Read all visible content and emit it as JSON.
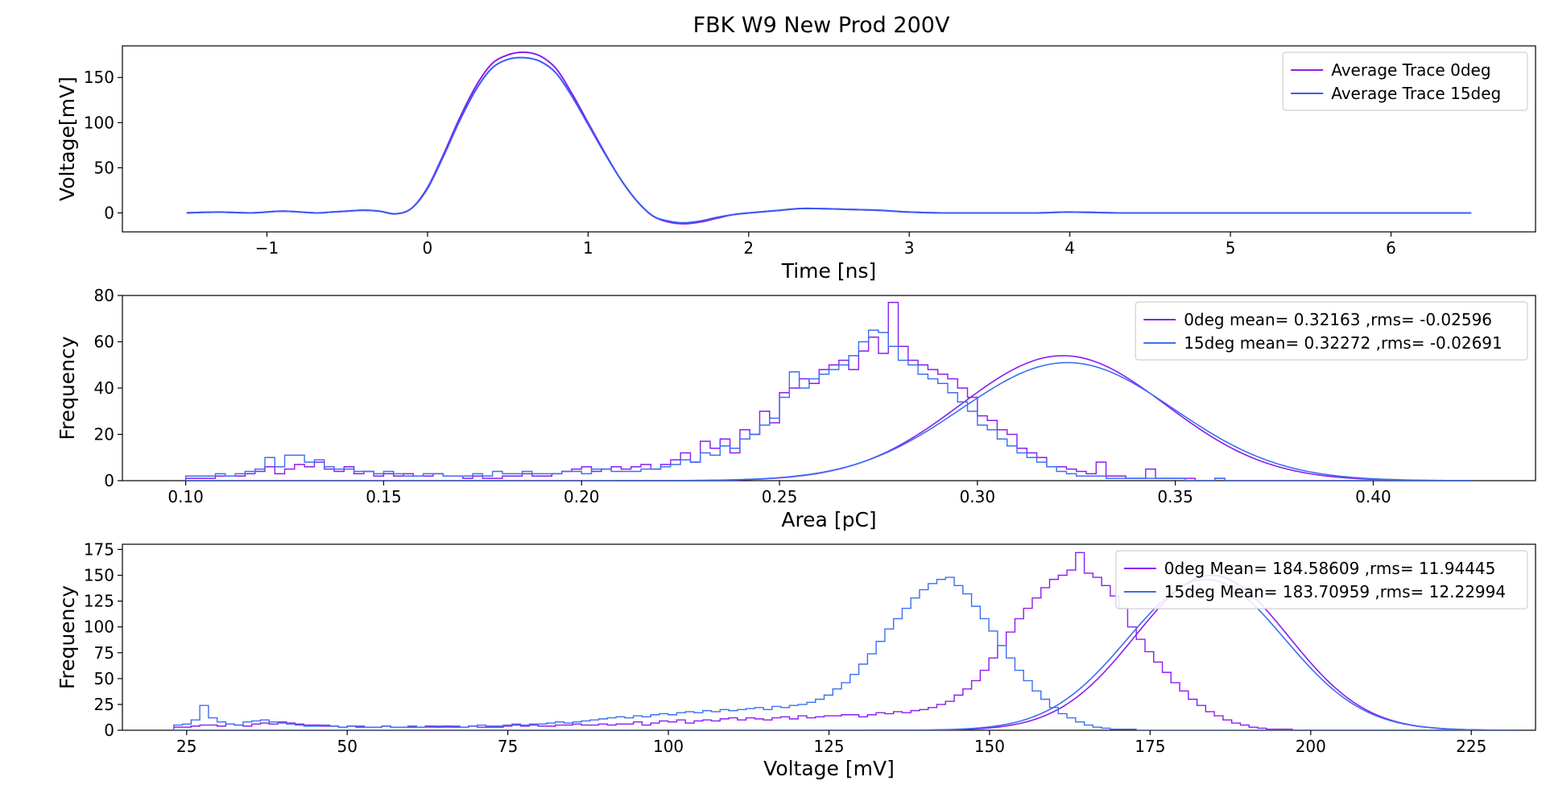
{
  "figure_title": "FBK W9 New Prod 200V",
  "colors": {
    "purple": "#8b1cf0",
    "blue": "#3a6ff2",
    "trace_blue": "#3b5bf5"
  },
  "chart_data": [
    {
      "type": "line",
      "title": "",
      "xlabel": "Time [ns]",
      "ylabel": "Voltage[mV]",
      "xlim": [
        -1.9,
        6.9
      ],
      "ylim": [
        -21,
        185
      ],
      "xticks": [
        -1,
        0,
        1,
        2,
        3,
        4,
        5,
        6
      ],
      "xtick_labels": [
        "−1",
        "0",
        "1",
        "2",
        "3",
        "4",
        "5",
        "6"
      ],
      "yticks": [
        0,
        50,
        100,
        150
      ],
      "grid": false,
      "legend_position": "top-right",
      "series": [
        {
          "name": "Average Trace 0deg",
          "color": "#8b1cf0",
          "x": [
            -1.5,
            -1.3,
            -1.1,
            -0.9,
            -0.7,
            -0.6,
            -0.5,
            -0.4,
            -0.3,
            -0.2,
            -0.1,
            0.0,
            0.1,
            0.2,
            0.3,
            0.4,
            0.5,
            0.6,
            0.7,
            0.8,
            0.9,
            1.0,
            1.1,
            1.2,
            1.3,
            1.4,
            1.5,
            1.6,
            1.7,
            1.8,
            1.9,
            2.0,
            2.2,
            2.35,
            2.6,
            2.8,
            3.0,
            3.2,
            3.5,
            3.8,
            4.0,
            4.3,
            4.6,
            5.0,
            5.5,
            6.0,
            6.5
          ],
          "y": [
            0,
            1,
            0,
            2,
            0,
            1,
            2,
            3,
            2,
            -1,
            5,
            28,
            65,
            105,
            140,
            165,
            175,
            178,
            174,
            160,
            132,
            100,
            68,
            38,
            14,
            -3,
            -10,
            -12,
            -10,
            -6,
            -2,
            0,
            3,
            5,
            4,
            3,
            1,
            0,
            0,
            0,
            1,
            0,
            0,
            0,
            0,
            0,
            0
          ]
        },
        {
          "name": "Average Trace 15deg",
          "color": "#3b5bf5",
          "x": [
            -1.5,
            -1.3,
            -1.1,
            -0.9,
            -0.7,
            -0.6,
            -0.5,
            -0.4,
            -0.3,
            -0.2,
            -0.1,
            0.0,
            0.1,
            0.2,
            0.3,
            0.4,
            0.5,
            0.6,
            0.7,
            0.8,
            0.9,
            1.0,
            1.1,
            1.2,
            1.3,
            1.4,
            1.5,
            1.6,
            1.7,
            1.8,
            1.9,
            2.0,
            2.2,
            2.35,
            2.6,
            2.8,
            3.0,
            3.2,
            3.5,
            3.8,
            4.0,
            4.3,
            4.6,
            5.0,
            5.5,
            6.0,
            6.5
          ],
          "y": [
            0,
            1,
            0,
            2,
            0,
            1,
            2,
            3,
            2,
            -1,
            5,
            27,
            63,
            102,
            136,
            160,
            170,
            172,
            168,
            155,
            129,
            98,
            67,
            38,
            14,
            -3,
            -9,
            -11,
            -9,
            -5,
            -2,
            0,
            3,
            5,
            4,
            3,
            1,
            0,
            0,
            0,
            1,
            0,
            0,
            0,
            0,
            0,
            0
          ]
        }
      ]
    },
    {
      "type": "histogram",
      "title": "",
      "xlabel": "Area [pC]",
      "ylabel": "Frequency",
      "xlim": [
        0.084,
        0.441
      ],
      "ylim": [
        0,
        80
      ],
      "xticks": [
        0.1,
        0.15,
        0.2,
        0.25,
        0.3,
        0.35,
        0.4
      ],
      "xtick_labels": [
        "0.10",
        "0.15",
        "0.20",
        "0.25",
        "0.30",
        "0.35",
        "0.40"
      ],
      "yticks": [
        0,
        20,
        40,
        60,
        80
      ],
      "grid": false,
      "legend_position": "top-right",
      "bin_start": 0.1,
      "bin_width": 0.0025,
      "series": [
        {
          "name": "0deg mean= 0.32163 ,rms= -0.02596",
          "color": "#8b1cf0",
          "counts": [
            1,
            1,
            1,
            2,
            2,
            2,
            3,
            4,
            6,
            3,
            5,
            7,
            6,
            8,
            5,
            4,
            6,
            3,
            4,
            2,
            3,
            2,
            3,
            2,
            2,
            3,
            2,
            2,
            1,
            2,
            1,
            1,
            2,
            2,
            3,
            2,
            2,
            3,
            4,
            5,
            6,
            4,
            5,
            6,
            5,
            6,
            7,
            5,
            7,
            9,
            12,
            8,
            17,
            14,
            18,
            12,
            22,
            20,
            30,
            25,
            38,
            40,
            44,
            42,
            48,
            50,
            52,
            48,
            56,
            62,
            55,
            77,
            58,
            52,
            50,
            48,
            46,
            44,
            40,
            36,
            28,
            26,
            22,
            20,
            14,
            12,
            10,
            6,
            6,
            5,
            4,
            3,
            8,
            2,
            2,
            1,
            1,
            5,
            1,
            1,
            1,
            1,
            0,
            0,
            1,
            0,
            0,
            0,
            0,
            0,
            0,
            0,
            0,
            0,
            0,
            0,
            0,
            0,
            0,
            0,
            0,
            0,
            0,
            0,
            0,
            0,
            0,
            0,
            0,
            0
          ],
          "fit_mean": 0.32163,
          "fit_sigma": 0.02596,
          "fit_peak": 54
        },
        {
          "name": "15deg mean= 0.32272 ,rms= -0.02691",
          "color": "#3a6ff2",
          "counts": [
            2,
            2,
            2,
            3,
            2,
            3,
            4,
            5,
            10,
            6,
            11,
            11,
            8,
            9,
            6,
            5,
            5,
            4,
            4,
            3,
            4,
            3,
            2,
            2,
            3,
            3,
            2,
            2,
            2,
            3,
            2,
            4,
            3,
            3,
            4,
            3,
            3,
            3,
            4,
            4,
            3,
            5,
            5,
            4,
            4,
            4,
            5,
            5,
            6,
            7,
            9,
            8,
            12,
            11,
            15,
            14,
            18,
            20,
            24,
            27,
            36,
            47,
            40,
            44,
            46,
            48,
            50,
            54,
            60,
            65,
            64,
            58,
            52,
            50,
            46,
            44,
            42,
            38,
            34,
            30,
            24,
            22,
            18,
            15,
            12,
            10,
            8,
            6,
            4,
            3,
            2,
            2,
            2,
            1,
            1,
            1,
            1,
            1,
            1,
            1,
            1,
            0,
            0,
            0,
            1,
            0,
            0,
            0,
            0,
            0,
            0,
            0,
            0,
            0,
            0,
            0,
            0,
            0,
            0,
            0,
            0,
            0,
            0,
            0,
            0,
            0,
            0,
            0,
            0,
            0
          ],
          "fit_mean": 0.32272,
          "fit_sigma": 0.02691,
          "fit_peak": 51
        }
      ]
    },
    {
      "type": "histogram",
      "title": "",
      "xlabel": "Voltage [mV]",
      "ylabel": "Frequency",
      "xlim": [
        15,
        235
      ],
      "ylim": [
        0,
        180
      ],
      "xticks": [
        25,
        50,
        75,
        100,
        125,
        150,
        175,
        200,
        225
      ],
      "xtick_labels": [
        "25",
        "50",
        "75",
        "100",
        "125",
        "150",
        "175",
        "200",
        "225"
      ],
      "yticks": [
        0,
        25,
        50,
        75,
        100,
        125,
        150,
        175
      ],
      "grid": false,
      "legend_position": "top-right",
      "bin_start": 23,
      "bin_width": 1.35,
      "series": [
        {
          "name": "0deg Mean= 184.58609 ,rms= 11.94445",
          "color": "#8b1cf0",
          "counts": [
            3,
            3,
            4,
            5,
            5,
            4,
            6,
            5,
            4,
            6,
            7,
            6,
            8,
            7,
            6,
            5,
            5,
            4,
            4,
            3,
            4,
            3,
            3,
            3,
            4,
            3,
            3,
            3,
            3,
            4,
            3,
            4,
            3,
            3,
            4,
            3,
            3,
            3,
            4,
            5,
            4,
            5,
            4,
            4,
            5,
            5,
            6,
            5,
            5,
            6,
            5,
            6,
            6,
            8,
            5,
            7,
            9,
            8,
            10,
            7,
            9,
            10,
            9,
            11,
            12,
            10,
            12,
            11,
            10,
            12,
            13,
            11,
            14,
            12,
            13,
            14,
            14,
            15,
            15,
            13,
            15,
            17,
            16,
            18,
            17,
            19,
            20,
            22,
            25,
            28,
            34,
            40,
            48,
            58,
            70,
            82,
            95,
            108,
            118,
            128,
            138,
            146,
            150,
            155,
            172,
            152,
            148,
            140,
            130,
            118,
            100,
            88,
            76,
            66,
            56,
            46,
            38,
            30,
            24,
            18,
            14,
            10,
            7,
            5,
            3,
            2,
            1,
            1,
            1,
            0,
            0,
            0,
            0,
            0,
            0,
            0,
            0,
            0,
            0,
            0,
            0,
            0,
            0,
            0,
            0,
            0,
            0,
            0,
            0,
            0,
            0,
            0,
            0,
            0,
            0
          ],
          "fit_mean": 184.58609,
          "fit_sigma": 11.94445,
          "fit_peak": 150
        },
        {
          "name": "15deg Mean= 183.70959 ,rms= 12.22994",
          "color": "#3a6ff2",
          "counts": [
            5,
            6,
            10,
            24,
            12,
            8,
            6,
            5,
            8,
            9,
            10,
            8,
            7,
            6,
            5,
            4,
            4,
            5,
            4,
            3,
            4,
            4,
            3,
            3,
            4,
            3,
            3,
            4,
            3,
            3,
            4,
            3,
            4,
            3,
            4,
            5,
            4,
            4,
            5,
            6,
            5,
            6,
            6,
            7,
            8,
            7,
            8,
            9,
            10,
            11,
            12,
            13,
            12,
            14,
            13,
            15,
            16,
            15,
            17,
            18,
            17,
            19,
            18,
            20,
            19,
            20,
            21,
            22,
            20,
            23,
            22,
            24,
            25,
            27,
            30,
            34,
            40,
            46,
            54,
            64,
            74,
            86,
            98,
            108,
            118,
            128,
            136,
            142,
            146,
            148,
            140,
            132,
            120,
            108,
            96,
            82,
            70,
            58,
            48,
            38,
            30,
            22,
            16,
            12,
            8,
            5,
            3,
            2,
            1,
            1,
            1,
            0,
            0,
            0,
            0,
            0,
            0,
            0,
            0,
            0,
            0,
            0,
            0,
            0,
            0,
            0,
            0,
            0,
            0,
            0,
            0,
            0,
            0,
            0,
            0,
            0,
            0,
            0,
            0,
            0,
            0,
            0,
            0,
            0,
            0,
            0,
            0,
            0,
            0,
            0,
            0,
            0,
            0,
            0,
            0
          ],
          "fit_mean": 183.70959,
          "fit_sigma": 12.22994,
          "fit_peak": 146
        }
      ]
    }
  ]
}
